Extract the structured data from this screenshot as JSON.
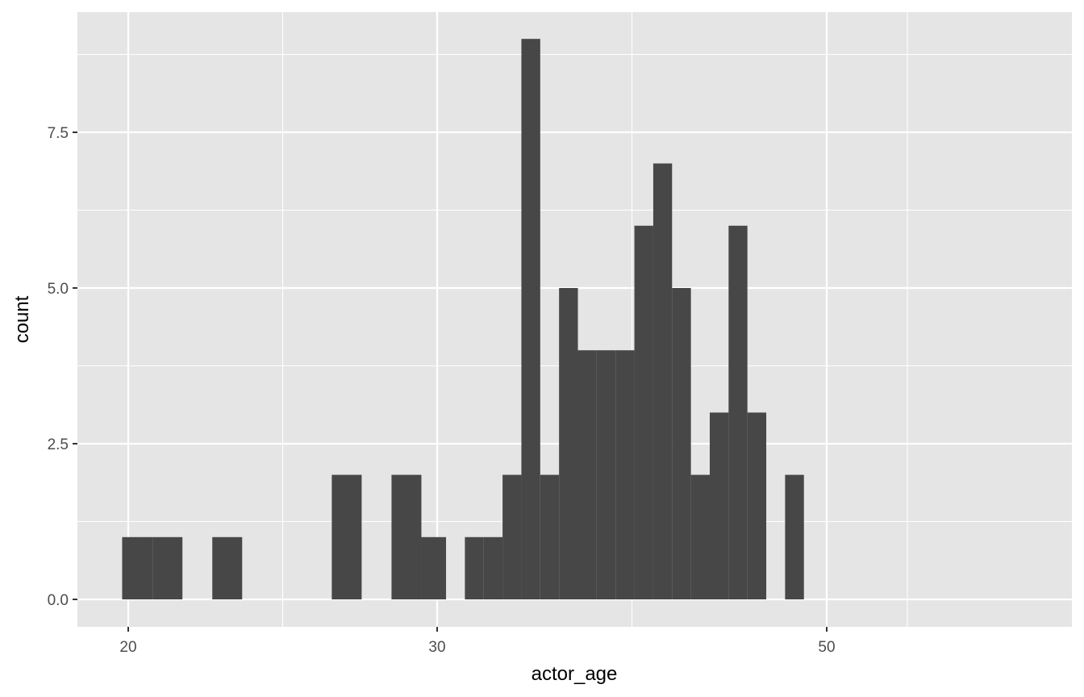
{
  "chart_data": {
    "type": "bar",
    "title": "",
    "xlabel": "actor_age",
    "ylabel": "count",
    "xlim": [
      18.5,
      65.2
    ],
    "ylim": [
      -0.44,
      9.35
    ],
    "x_breaks_major": [
      20,
      30,
      50
    ],
    "x_tick_labels": [
      "20",
      "30",
      "50"
    ],
    "x_breaks_minor": [
      25,
      40,
      55
    ],
    "y_breaks_major": [
      0,
      2.5,
      5,
      7.5
    ],
    "y_tick_labels": [
      "0.0",
      "2.5",
      "5.0",
      "7.5"
    ],
    "y_breaks_minor": [
      1.25,
      3.75,
      6.25,
      8.75
    ],
    "bin_width": 0.967,
    "bin_start": 19.82,
    "counts": [
      1,
      1,
      0,
      1,
      0,
      0,
      0,
      2,
      0,
      2,
      1,
      0,
      1,
      1,
      2,
      9,
      2,
      5,
      4,
      4,
      4,
      6,
      7,
      5,
      2,
      3,
      6,
      3,
      0,
      2
    ],
    "bar_color": "#474747",
    "panel_background": "#e5e5e5",
    "grid_color": "#ffffff",
    "grid": true,
    "legend": "none"
  }
}
